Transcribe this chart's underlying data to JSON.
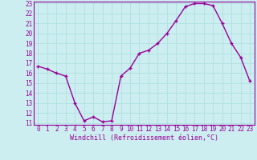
{
  "x": [
    0,
    1,
    2,
    3,
    4,
    5,
    6,
    7,
    8,
    9,
    10,
    11,
    12,
    13,
    14,
    15,
    16,
    17,
    18,
    19,
    20,
    21,
    22,
    23
  ],
  "y": [
    16.7,
    16.4,
    16.0,
    15.7,
    13.0,
    11.2,
    11.6,
    11.1,
    11.2,
    15.7,
    16.5,
    18.0,
    18.3,
    19.0,
    20.0,
    21.3,
    22.7,
    23.0,
    23.0,
    22.8,
    21.0,
    19.0,
    17.6,
    15.2
  ],
  "line_color": "#990099",
  "marker": "+",
  "marker_size": 3,
  "marker_linewidth": 1.0,
  "bg_color": "#cceef0",
  "grid_color": "#aadddd",
  "xlabel": "Windchill (Refroidissement éolien,°C)",
  "xlabel_color": "#990099",
  "tick_color": "#990099",
  "ylim": [
    11,
    23
  ],
  "xlim": [
    -0.5,
    23.5
  ],
  "yticks": [
    11,
    12,
    13,
    14,
    15,
    16,
    17,
    18,
    19,
    20,
    21,
    22,
    23
  ],
  "xticks": [
    0,
    1,
    2,
    3,
    4,
    5,
    6,
    7,
    8,
    9,
    10,
    11,
    12,
    13,
    14,
    15,
    16,
    17,
    18,
    19,
    20,
    21,
    22,
    23
  ],
  "font_family": "monospace",
  "tick_fontsize": 5.5,
  "xlabel_fontsize": 6.0,
  "line_width": 1.0
}
